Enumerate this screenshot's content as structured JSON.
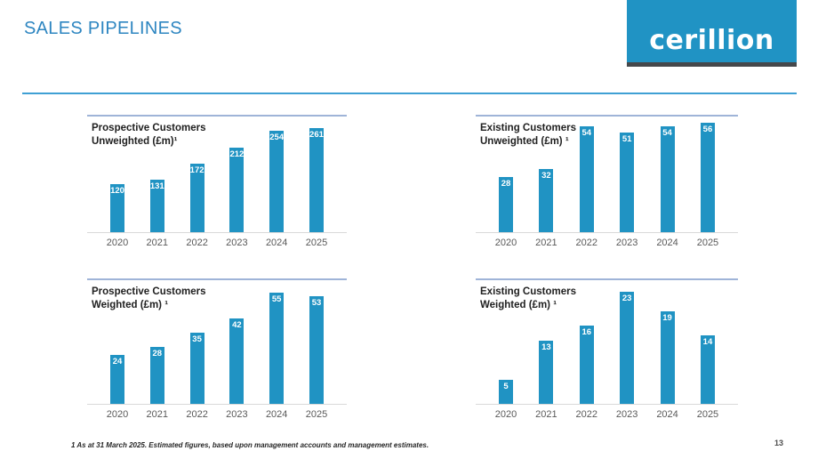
{
  "slide": {
    "title": "SALES PIPELINES",
    "footnote": "1 As at 31 March 2025. Estimated figures, based upon management accounts and management estimates.",
    "page_number": "13"
  },
  "logo": {
    "text": "cerillion"
  },
  "colors": {
    "accent_blue": "#2E86C1",
    "rule_blue": "#3FA0D4",
    "bar_blue": "#2093C3",
    "logo_blue": "#2093C4",
    "logo_strip": "#45484B",
    "panel_border": "#9FB4D8",
    "bar_label_white": "#FFFFFF",
    "axis_label_gray": "#595959"
  },
  "chart_data": [
    {
      "type": "bar",
      "title_line1": "Prospective Customers",
      "title_line2": "Unweighted (£m)¹",
      "categories": [
        "2020",
        "2021",
        "2022",
        "2023",
        "2024",
        "2025"
      ],
      "values": [
        120,
        131,
        172,
        212,
        254,
        261
      ],
      "ylim": [
        0,
        290
      ],
      "grid": false,
      "legend": "none",
      "data_labels": "inside-top, white"
    },
    {
      "type": "bar",
      "title_line1": "Existing Customers",
      "title_line2": "Unweighted (£m) ¹",
      "categories": [
        "2020",
        "2021",
        "2022",
        "2023",
        "2024",
        "2025"
      ],
      "values": [
        28,
        32,
        54,
        51,
        54,
        56
      ],
      "ylim": [
        0,
        59
      ],
      "grid": false,
      "legend": "none",
      "data_labels": "inside-top, white"
    },
    {
      "type": "bar",
      "title_line1": "Prospective Customers",
      "title_line2": "Weighted (£m) ¹",
      "categories": [
        "2020",
        "2021",
        "2022",
        "2023",
        "2024",
        "2025"
      ],
      "values": [
        24,
        28,
        35,
        42,
        55,
        53
      ],
      "ylim": [
        0,
        61
      ],
      "grid": false,
      "legend": "none",
      "data_labels": "inside-top, white"
    },
    {
      "type": "bar",
      "title_line1": "Existing Customers",
      "title_line2": "Weighted (£m) ¹",
      "categories": [
        "2020",
        "2021",
        "2022",
        "2023",
        "2024",
        "2025"
      ],
      "values": [
        5,
        13,
        16,
        23,
        19,
        14
      ],
      "ylim": [
        0,
        25.4
      ],
      "grid": false,
      "legend": "none",
      "data_labels": "inside-top, white"
    }
  ]
}
